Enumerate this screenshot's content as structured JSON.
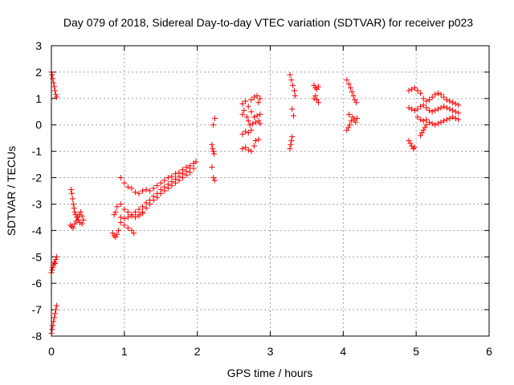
{
  "chart_data": {
    "type": "scatter",
    "title": "Day 079 of 2018, Sidereal Day-to-day VTEC variation (SDTVAR) for receiver p023",
    "xlabel": "GPS time / hours",
    "ylabel": "SDTVAR / TECUs",
    "xlim": [
      0,
      6
    ],
    "ylim": [
      -8,
      3
    ],
    "xticks": [
      "0",
      "1",
      "2",
      "3",
      "4",
      "5",
      "6"
    ],
    "yticks": [
      "-8",
      "-7",
      "-6",
      "-5",
      "-4",
      "-3",
      "-2",
      "-1",
      "0",
      "1",
      "2",
      "3"
    ],
    "grid": true,
    "marker": "plus",
    "color": "#ff0000",
    "series": [
      {
        "points": [
          [
            0.0,
            2.0
          ],
          [
            0.01,
            1.9
          ],
          [
            0.02,
            1.75
          ],
          [
            0.03,
            1.6
          ],
          [
            0.04,
            1.45
          ],
          [
            0.05,
            1.3
          ],
          [
            0.06,
            1.15
          ],
          [
            0.07,
            1.05
          ],
          [
            0.0,
            -5.6
          ],
          [
            0.01,
            -5.5
          ],
          [
            0.02,
            -5.4
          ],
          [
            0.03,
            -5.3
          ],
          [
            0.04,
            -5.2
          ],
          [
            0.05,
            -5.25
          ],
          [
            0.06,
            -5.1
          ],
          [
            0.07,
            -5.0
          ],
          [
            0.0,
            -7.9
          ],
          [
            0.01,
            -7.75
          ],
          [
            0.02,
            -7.6
          ],
          [
            0.03,
            -7.45
          ],
          [
            0.04,
            -7.3
          ],
          [
            0.05,
            -7.15
          ],
          [
            0.06,
            -7.0
          ],
          [
            0.07,
            -6.85
          ],
          [
            0.27,
            -2.45
          ],
          [
            0.28,
            -2.6
          ],
          [
            0.29,
            -2.8
          ],
          [
            0.3,
            -3.0
          ],
          [
            0.31,
            -3.15
          ],
          [
            0.32,
            -3.3
          ],
          [
            0.33,
            -3.4
          ],
          [
            0.35,
            -3.5
          ],
          [
            0.37,
            -3.6
          ],
          [
            0.39,
            -3.7
          ],
          [
            0.26,
            -3.8
          ],
          [
            0.28,
            -3.85
          ],
          [
            0.3,
            -3.9
          ],
          [
            0.32,
            -3.75
          ],
          [
            0.34,
            -3.65
          ],
          [
            0.36,
            -3.5
          ],
          [
            0.38,
            -3.4
          ],
          [
            0.4,
            -3.3
          ],
          [
            0.42,
            -3.45
          ],
          [
            0.44,
            -3.6
          ],
          [
            0.42,
            -3.75
          ],
          [
            0.84,
            -4.1
          ],
          [
            0.86,
            -4.2
          ],
          [
            0.88,
            -4.25
          ],
          [
            0.9,
            -4.15
          ],
          [
            0.92,
            -4.0
          ],
          [
            0.86,
            -3.4
          ],
          [
            0.88,
            -3.3
          ],
          [
            0.95,
            -2.0
          ],
          [
            1.0,
            -2.2
          ],
          [
            1.05,
            -2.35
          ],
          [
            1.1,
            -2.4
          ],
          [
            1.15,
            -2.55
          ],
          [
            1.2,
            -2.6
          ],
          [
            1.25,
            -2.5
          ],
          [
            1.3,
            -2.45
          ],
          [
            1.35,
            -2.5
          ],
          [
            1.4,
            -2.4
          ],
          [
            1.45,
            -2.3
          ],
          [
            1.5,
            -2.2
          ],
          [
            1.55,
            -2.1
          ],
          [
            1.6,
            -2.0
          ],
          [
            1.65,
            -1.95
          ],
          [
            1.7,
            -1.85
          ],
          [
            1.75,
            -1.8
          ],
          [
            1.8,
            -1.7
          ],
          [
            1.85,
            -1.6
          ],
          [
            1.9,
            -1.55
          ],
          [
            1.95,
            -1.45
          ],
          [
            1.98,
            -1.4
          ],
          [
            0.9,
            -3.1
          ],
          [
            0.95,
            -3.0
          ],
          [
            1.0,
            -3.2
          ],
          [
            1.05,
            -3.3
          ],
          [
            1.1,
            -3.45
          ],
          [
            1.15,
            -3.5
          ],
          [
            1.2,
            -3.4
          ],
          [
            1.25,
            -3.3
          ],
          [
            1.3,
            -3.15
          ],
          [
            1.35,
            -3.0
          ],
          [
            1.4,
            -2.85
          ],
          [
            1.45,
            -2.75
          ],
          [
            1.5,
            -2.6
          ],
          [
            1.55,
            -2.5
          ],
          [
            1.6,
            -2.4
          ],
          [
            1.65,
            -2.3
          ],
          [
            1.7,
            -2.2
          ],
          [
            1.75,
            -2.1
          ],
          [
            1.8,
            -2.0
          ],
          [
            1.85,
            -1.9
          ],
          [
            1.9,
            -1.8
          ],
          [
            1.95,
            -1.65
          ],
          [
            0.95,
            -3.5
          ],
          [
            1.0,
            -3.55
          ],
          [
            1.05,
            -3.5
          ],
          [
            1.1,
            -3.4
          ],
          [
            1.15,
            -3.3
          ],
          [
            1.2,
            -3.2
          ],
          [
            1.25,
            -3.1
          ],
          [
            1.3,
            -2.95
          ],
          [
            1.35,
            -2.85
          ],
          [
            1.4,
            -2.7
          ],
          [
            1.45,
            -2.6
          ],
          [
            1.5,
            -2.45
          ],
          [
            1.55,
            -2.35
          ],
          [
            1.6,
            -2.25
          ],
          [
            1.65,
            -2.15
          ],
          [
            1.7,
            -2.05
          ],
          [
            1.75,
            -1.95
          ],
          [
            1.8,
            -1.85
          ],
          [
            1.85,
            -1.75
          ],
          [
            1.9,
            -1.65
          ],
          [
            0.95,
            -3.7
          ],
          [
            1.0,
            -3.8
          ],
          [
            1.05,
            -3.9
          ],
          [
            1.1,
            -4.0
          ],
          [
            1.13,
            -4.1
          ],
          [
            1.2,
            -3.45
          ],
          [
            1.25,
            -3.35
          ],
          [
            2.2,
            -0.75
          ],
          [
            2.21,
            -0.9
          ],
          [
            2.22,
            -1.0
          ],
          [
            2.23,
            -1.1
          ],
          [
            2.2,
            -1.6
          ],
          [
            2.22,
            -2.0
          ],
          [
            2.24,
            -2.1
          ],
          [
            2.22,
            0.0
          ],
          [
            2.24,
            0.25
          ],
          [
            2.62,
            -0.9
          ],
          [
            2.66,
            -0.85
          ],
          [
            2.7,
            -0.95
          ],
          [
            2.74,
            -1.0
          ],
          [
            2.78,
            -0.8
          ],
          [
            2.8,
            -0.6
          ],
          [
            2.84,
            -0.55
          ],
          [
            2.62,
            -0.35
          ],
          [
            2.66,
            -0.25
          ],
          [
            2.7,
            -0.3
          ],
          [
            2.74,
            -0.2
          ],
          [
            2.62,
            0.4
          ],
          [
            2.64,
            0.55
          ],
          [
            2.68,
            0.3
          ],
          [
            2.7,
            0.15
          ],
          [
            2.72,
            0.0
          ],
          [
            2.76,
            0.05
          ],
          [
            2.8,
            0.1
          ],
          [
            2.84,
            0.15
          ],
          [
            2.86,
            0.05
          ],
          [
            2.62,
            0.8
          ],
          [
            2.66,
            0.9
          ],
          [
            2.7,
            0.7
          ],
          [
            2.74,
            0.5
          ],
          [
            2.78,
            0.3
          ],
          [
            2.82,
            0.35
          ],
          [
            2.86,
            0.4
          ],
          [
            2.74,
            0.95
          ],
          [
            2.78,
            1.05
          ],
          [
            2.82,
            1.1
          ],
          [
            2.86,
            1.0
          ],
          [
            2.84,
            0.85
          ],
          [
            3.27,
            -0.9
          ],
          [
            3.28,
            -0.75
          ],
          [
            3.29,
            -0.6
          ],
          [
            3.3,
            -0.45
          ],
          [
            3.27,
            1.9
          ],
          [
            3.29,
            1.7
          ],
          [
            3.31,
            1.5
          ],
          [
            3.33,
            1.3
          ],
          [
            3.34,
            1.1
          ],
          [
            3.3,
            0.6
          ],
          [
            3.32,
            0.35
          ],
          [
            3.6,
            1.5
          ],
          [
            3.62,
            1.4
          ],
          [
            3.64,
            1.35
          ],
          [
            3.66,
            1.45
          ],
          [
            3.6,
            1.0
          ],
          [
            3.62,
            1.1
          ],
          [
            3.64,
            0.95
          ],
          [
            3.66,
            0.85
          ],
          [
            4.05,
            1.7
          ],
          [
            4.08,
            1.55
          ],
          [
            4.1,
            1.4
          ],
          [
            4.12,
            1.25
          ],
          [
            4.14,
            1.1
          ],
          [
            4.16,
            0.95
          ],
          [
            4.18,
            0.85
          ],
          [
            4.05,
            -0.2
          ],
          [
            4.07,
            -0.1
          ],
          [
            4.09,
            0.0
          ],
          [
            4.11,
            0.15
          ],
          [
            4.13,
            0.3
          ],
          [
            4.15,
            0.2
          ],
          [
            4.17,
            0.1
          ],
          [
            4.19,
            0.25
          ],
          [
            4.08,
            0.4
          ],
          [
            4.9,
            1.3
          ],
          [
            4.94,
            1.35
          ],
          [
            4.98,
            1.4
          ],
          [
            5.02,
            1.3
          ],
          [
            5.06,
            1.2
          ],
          [
            5.1,
            1.0
          ],
          [
            5.14,
            0.9
          ],
          [
            5.18,
            0.95
          ],
          [
            5.22,
            1.05
          ],
          [
            5.26,
            1.15
          ],
          [
            5.3,
            1.2
          ],
          [
            5.34,
            1.15
          ],
          [
            5.38,
            1.05
          ],
          [
            5.42,
            0.95
          ],
          [
            5.46,
            0.9
          ],
          [
            5.5,
            0.85
          ],
          [
            5.54,
            0.8
          ],
          [
            5.58,
            0.75
          ],
          [
            4.9,
            0.65
          ],
          [
            4.94,
            0.6
          ],
          [
            4.98,
            0.55
          ],
          [
            5.02,
            0.6
          ],
          [
            5.06,
            0.7
          ],
          [
            5.1,
            0.75
          ],
          [
            5.14,
            0.65
          ],
          [
            5.18,
            0.55
          ],
          [
            5.22,
            0.5
          ],
          [
            5.26,
            0.55
          ],
          [
            5.3,
            0.6
          ],
          [
            5.34,
            0.65
          ],
          [
            5.38,
            0.7
          ],
          [
            5.42,
            0.65
          ],
          [
            5.46,
            0.6
          ],
          [
            5.5,
            0.55
          ],
          [
            5.54,
            0.5
          ],
          [
            5.58,
            0.45
          ],
          [
            5.02,
            0.3
          ],
          [
            5.06,
            0.2
          ],
          [
            5.1,
            0.15
          ],
          [
            5.14,
            0.2
          ],
          [
            5.18,
            0.1
          ],
          [
            5.22,
            0.05
          ],
          [
            5.26,
            0.0
          ],
          [
            5.3,
            0.05
          ],
          [
            5.34,
            0.1
          ],
          [
            5.38,
            0.15
          ],
          [
            5.42,
            0.2
          ],
          [
            5.46,
            0.25
          ],
          [
            5.5,
            0.3
          ],
          [
            5.54,
            0.25
          ],
          [
            5.58,
            0.2
          ],
          [
            5.06,
            -0.4
          ],
          [
            5.08,
            -0.3
          ],
          [
            5.1,
            -0.2
          ],
          [
            5.12,
            -0.1
          ],
          [
            5.14,
            0.0
          ],
          [
            4.9,
            -0.6
          ],
          [
            4.92,
            -0.7
          ],
          [
            4.94,
            -0.8
          ],
          [
            4.96,
            -0.9
          ],
          [
            4.98,
            -0.85
          ]
        ]
      }
    ]
  }
}
